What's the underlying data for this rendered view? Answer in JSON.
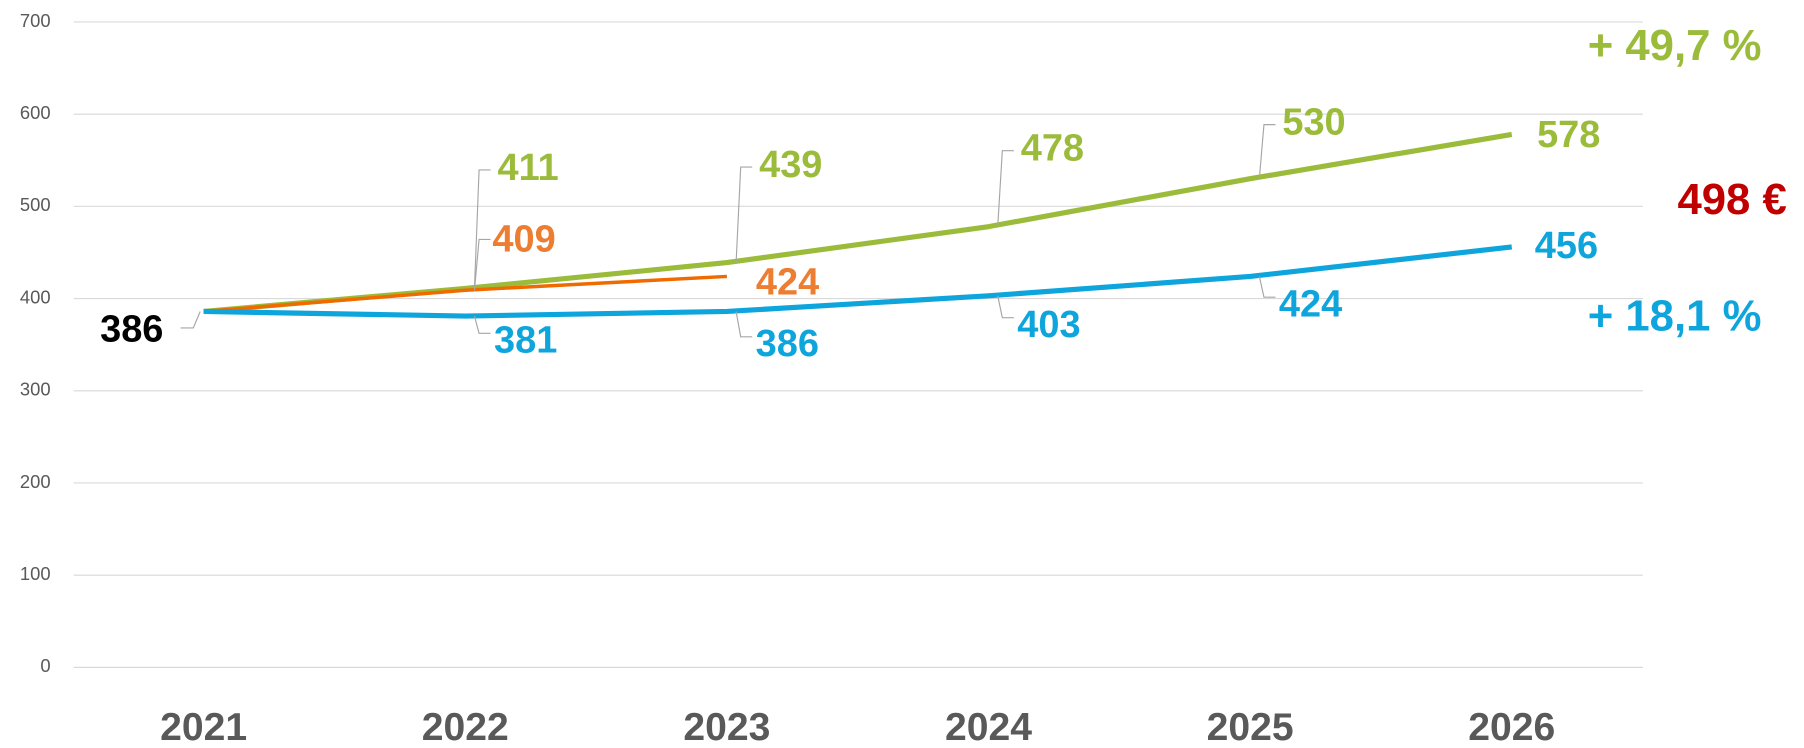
{
  "chart_data": {
    "type": "line",
    "categories": [
      "2021",
      "2022",
      "2023",
      "2024",
      "2025",
      "2026"
    ],
    "series": [
      {
        "color": "#9bbb3b",
        "values": [
          386,
          411,
          439,
          478,
          530,
          578
        ]
      },
      {
        "color": "#0ea5dd",
        "values": [
          386,
          381,
          386,
          403,
          424,
          456
        ]
      },
      {
        "color": "#f06a00",
        "label_color": "#ed7d31",
        "values": [
          386,
          409,
          424,
          null,
          null,
          null
        ]
      }
    ],
    "annotations": [
      {
        "text": "+ 49,7 %",
        "color": "#9bbb3b"
      },
      {
        "text": "498 €",
        "color": "#c00000"
      },
      {
        "text": "+ 18,1 %",
        "color": "#0ea5dd"
      }
    ],
    "ylim": [
      0,
      700
    ],
    "yticks": [
      0,
      100,
      200,
      300,
      400,
      500,
      600,
      700
    ],
    "grid": true
  }
}
